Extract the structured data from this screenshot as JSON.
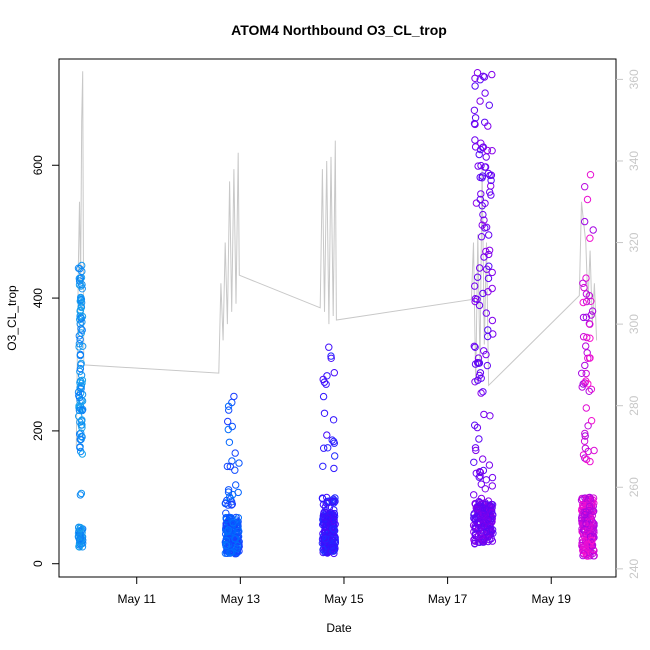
{
  "chart_data": {
    "type": "scatter",
    "title": "ATOM4 Northbound O3_CL_trop",
    "xlabel": "Date",
    "ylabel": "O3_CL_trop",
    "x_ticks": [
      "May 11",
      "May 13",
      "May 15",
      "May 17",
      "May 19"
    ],
    "xlim": [
      "2018-05-09T12:00",
      "2018-05-20T06:00"
    ],
    "ylim": [
      -20,
      760
    ],
    "y_ticks": [
      0,
      200,
      400,
      600
    ],
    "secondary_axis": {
      "label": "",
      "ticks": [
        240,
        260,
        280,
        300,
        320,
        340,
        360
      ],
      "ylim": [
        238,
        365
      ],
      "color": "#c8c8c8"
    },
    "colors": {
      "scatter_gradient": [
        "#1aa7ec",
        "#0066ff",
        "#3311ff",
        "#7a00ee",
        "#ff11cc"
      ],
      "line": "#c8c8c8"
    },
    "series": [
      {
        "kind": "scatter",
        "x_range": [
          "2018-05-09T21:00",
          "2018-05-09T23:00"
        ],
        "clusters": [
          {
            "y_min": 25,
            "y_max": 55,
            "n": 40
          },
          {
            "y_min": 160,
            "y_max": 370,
            "n": 60
          },
          {
            "y_min": 370,
            "y_max": 450,
            "n": 25
          },
          {
            "y_min": 95,
            "y_max": 110,
            "n": 2
          }
        ]
      },
      {
        "kind": "scatter",
        "x_range": [
          "2018-05-12T17:00",
          "2018-05-12T23:30"
        ],
        "clusters": [
          {
            "y_min": 15,
            "y_max": 70,
            "n": 180
          },
          {
            "y_min": 70,
            "y_max": 120,
            "n": 15
          },
          {
            "y_min": 140,
            "y_max": 255,
            "n": 14
          }
        ]
      },
      {
        "kind": "scatter",
        "x_range": [
          "2018-05-14T14:00",
          "2018-05-14T20:00"
        ],
        "clusters": [
          {
            "y_min": 15,
            "y_max": 75,
            "n": 180
          },
          {
            "y_min": 75,
            "y_max": 100,
            "n": 25
          },
          {
            "y_min": 130,
            "y_max": 330,
            "n": 20
          }
        ]
      },
      {
        "kind": "scatter",
        "x_range": [
          "2018-05-17T12:00",
          "2018-05-17T21:00"
        ],
        "clusters": [
          {
            "y_min": 30,
            "y_max": 95,
            "n": 170
          },
          {
            "y_min": 95,
            "y_max": 260,
            "n": 25
          },
          {
            "y_min": 260,
            "y_max": 500,
            "n": 40
          },
          {
            "y_min": 500,
            "y_max": 745,
            "n": 50
          }
        ]
      },
      {
        "kind": "scatter",
        "x_range": [
          "2018-05-19T14:00",
          "2018-05-19T20:00"
        ],
        "clusters": [
          {
            "y_min": 10,
            "y_max": 100,
            "n": 200
          },
          {
            "y_min": 150,
            "y_max": 440,
            "n": 45
          },
          {
            "y_min": 490,
            "y_max": 610,
            "n": 6
          }
        ]
      },
      {
        "kind": "line",
        "axis": "secondary",
        "points": [
          {
            "x": "2018-05-09T20:00",
            "y": 270
          },
          {
            "x": "2018-05-09T21:00",
            "y": 315
          },
          {
            "x": "2018-05-09T21:30",
            "y": 330
          },
          {
            "x": "2018-05-09T22:00",
            "y": 310
          },
          {
            "x": "2018-05-09T22:30",
            "y": 350
          },
          {
            "x": "2018-05-09T23:00",
            "y": 362
          },
          {
            "x": "2018-05-09T23:30",
            "y": 290
          },
          {
            "x": "2018-05-12T14:00",
            "y": 288
          },
          {
            "x": "2018-05-12T15:00",
            "y": 310
          },
          {
            "x": "2018-05-12T16:00",
            "y": 296
          },
          {
            "x": "2018-05-12T17:00",
            "y": 320
          },
          {
            "x": "2018-05-12T18:00",
            "y": 300
          },
          {
            "x": "2018-05-12T19:00",
            "y": 335
          },
          {
            "x": "2018-05-12T20:00",
            "y": 303
          },
          {
            "x": "2018-05-12T21:00",
            "y": 338
          },
          {
            "x": "2018-05-12T22:00",
            "y": 305
          },
          {
            "x": "2018-05-12T23:00",
            "y": 342
          },
          {
            "x": "2018-05-12T23:30",
            "y": 312
          },
          {
            "x": "2018-05-14T13:00",
            "y": 304
          },
          {
            "x": "2018-05-14T14:00",
            "y": 338
          },
          {
            "x": "2018-05-14T15:00",
            "y": 303
          },
          {
            "x": "2018-05-14T16:00",
            "y": 340
          },
          {
            "x": "2018-05-14T17:00",
            "y": 300
          },
          {
            "x": "2018-05-14T18:00",
            "y": 341
          },
          {
            "x": "2018-05-14T19:00",
            "y": 302
          },
          {
            "x": "2018-05-14T20:00",
            "y": 345
          },
          {
            "x": "2018-05-14T20:30",
            "y": 301
          },
          {
            "x": "2018-05-17T11:00",
            "y": 306
          },
          {
            "x": "2018-05-17T12:00",
            "y": 320
          },
          {
            "x": "2018-05-17T13:00",
            "y": 285
          },
          {
            "x": "2018-05-17T14:00",
            "y": 322
          },
          {
            "x": "2018-05-17T15:00",
            "y": 290
          },
          {
            "x": "2018-05-17T16:00",
            "y": 338
          },
          {
            "x": "2018-05-17T17:00",
            "y": 295
          },
          {
            "x": "2018-05-17T18:00",
            "y": 320
          },
          {
            "x": "2018-05-17T19:00",
            "y": 285
          },
          {
            "x": "2018-05-17T21:00",
            "y": 286
          },
          {
            "x": "2018-05-19T13:00",
            "y": 307
          },
          {
            "x": "2018-05-19T14:00",
            "y": 330
          },
          {
            "x": "2018-05-19T15:00",
            "y": 325
          },
          {
            "x": "2018-05-19T16:00",
            "y": 320
          },
          {
            "x": "2018-05-19T17:00",
            "y": 305
          },
          {
            "x": "2018-05-19T18:00",
            "y": 318
          },
          {
            "x": "2018-05-19T19:00",
            "y": 300
          },
          {
            "x": "2018-05-19T20:00",
            "y": 310
          },
          {
            "x": "2018-05-19T21:00",
            "y": 296
          }
        ]
      }
    ],
    "grid": false
  }
}
